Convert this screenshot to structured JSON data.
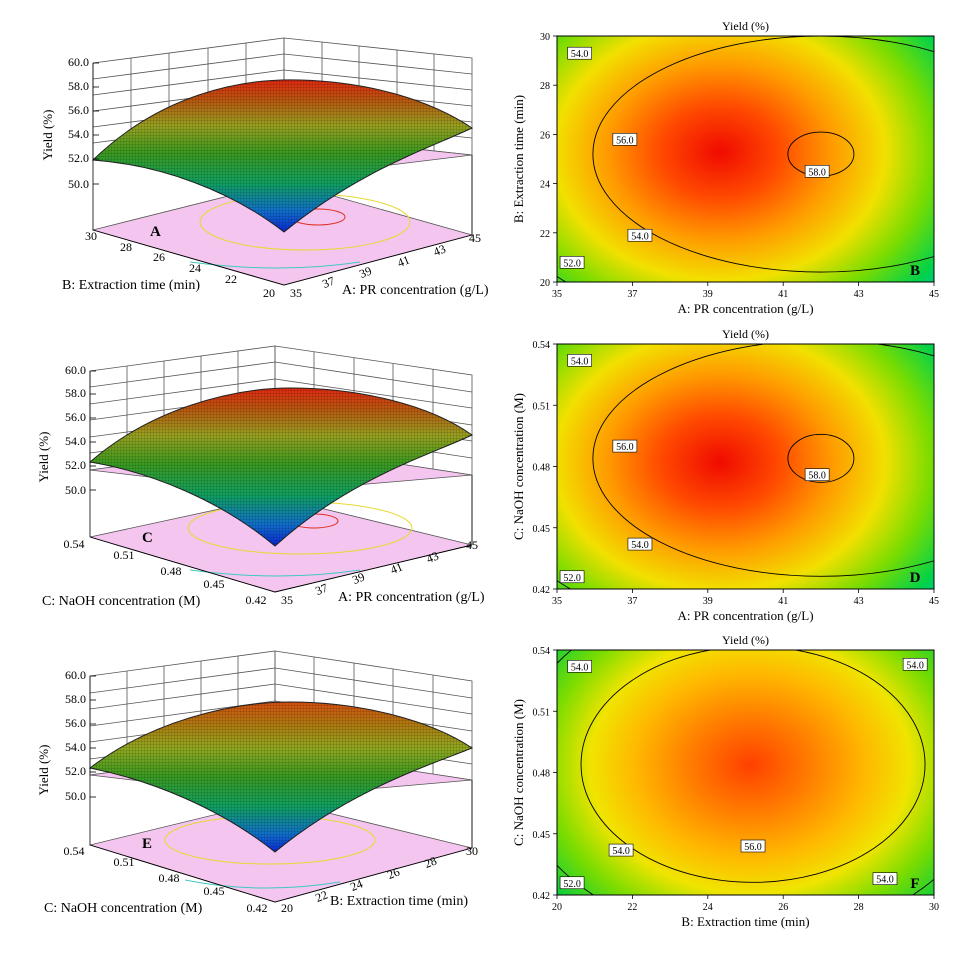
{
  "colors": {
    "floor": "#f4c6ef",
    "grid": "#555555",
    "contour_red": "#e03020",
    "contour_yellow": "#e8d830",
    "contour_cyan": "#40c8c0",
    "contour_line": "#000000"
  },
  "chart_data": [
    {
      "type": "surface3d",
      "panel": "A",
      "zlabel": "Yield (%)",
      "zticks": [
        "50.0",
        "52.0",
        "54.0",
        "56.0",
        "58.0",
        "60.0"
      ],
      "zlim": [
        50,
        60
      ],
      "xlabel": "A: PR concentration (g/L)",
      "xticks": [
        "35",
        "37",
        "39",
        "41",
        "43",
        "45"
      ],
      "xlim": [
        35,
        45
      ],
      "ylabel": "B: Extraction time (min)",
      "yticks": [
        "20",
        "22",
        "24",
        "26",
        "28",
        "30"
      ],
      "ylim": [
        20,
        30
      ],
      "optimum": {
        "x": 42,
        "y": 25.2,
        "yield": 58.4
      },
      "corners": {
        "x_min_y_min": 49.2,
        "x_min_y_max": 52.2,
        "x_max_y_min": 54.4,
        "x_max_y_max": 54.6
      }
    },
    {
      "type": "contour",
      "panel": "B",
      "title": "Yield (%)",
      "xlabel": "A: PR concentration (g/L)",
      "xticks": [
        "35",
        "37",
        "39",
        "41",
        "43",
        "45"
      ],
      "xlim": [
        35,
        45
      ],
      "ylabel": "B: Extraction time (min)",
      "yticks": [
        "20",
        "22",
        "24",
        "26",
        "28",
        "30"
      ],
      "ylim": [
        20,
        30
      ],
      "optimum": {
        "x": 42,
        "y": 25.2,
        "yield": 58.4
      },
      "levels": [
        52,
        54,
        56,
        58
      ],
      "contour_labels": [
        {
          "text": "54.0",
          "x": 35.6,
          "y": 29.3
        },
        {
          "text": "56.0",
          "x": 36.8,
          "y": 25.8
        },
        {
          "text": "58.0",
          "x": 41.9,
          "y": 24.5
        },
        {
          "text": "54.0",
          "x": 37.2,
          "y": 21.9
        },
        {
          "text": "52.0",
          "x": 35.4,
          "y": 20.8
        }
      ]
    },
    {
      "type": "surface3d",
      "panel": "C",
      "zlabel": "Yield (%)",
      "zticks": [
        "50.0",
        "52.0",
        "54.0",
        "56.0",
        "58.0",
        "60.0"
      ],
      "zlim": [
        50,
        60
      ],
      "xlabel": "A: PR concentration (g/L)",
      "xticks": [
        "35",
        "37",
        "39",
        "41",
        "43",
        "45"
      ],
      "xlim": [
        35,
        45
      ],
      "ylabel": "C: NaOH concentration (M)",
      "yticks": [
        "0.42",
        "0.45",
        "0.48",
        "0.51",
        "0.54"
      ],
      "ylim": [
        0.42,
        0.54
      ],
      "optimum": {
        "x": 42,
        "y": 0.484,
        "yield": 58.4
      },
      "corners": {
        "x_min_y_min": 49.5,
        "x_min_y_max": 52.6,
        "x_max_y_min": 55.0,
        "x_max_y_max": 54.8
      }
    },
    {
      "type": "contour",
      "panel": "D",
      "title": "Yield (%)",
      "xlabel": "A: PR concentration (g/L)",
      "xticks": [
        "35",
        "37",
        "39",
        "41",
        "43",
        "45"
      ],
      "xlim": [
        35,
        45
      ],
      "ylabel": "C: NaOH concentration (M)",
      "yticks": [
        "0.42",
        "0.45",
        "0.48",
        "0.51",
        "0.54"
      ],
      "ylim": [
        0.42,
        0.54
      ],
      "optimum": {
        "x": 42,
        "y": 0.484,
        "yield": 58.4
      },
      "levels": [
        52,
        54,
        56,
        58
      ],
      "contour_labels": [
        {
          "text": "54.0",
          "x": 35.6,
          "y": 0.532
        },
        {
          "text": "56.0",
          "x": 36.8,
          "y": 0.49
        },
        {
          "text": "58.0",
          "x": 41.9,
          "y": 0.476
        },
        {
          "text": "54.0",
          "x": 37.2,
          "y": 0.442
        },
        {
          "text": "52.0",
          "x": 35.4,
          "y": 0.426
        }
      ]
    },
    {
      "type": "surface3d",
      "panel": "E",
      "zlabel": "Yield (%)",
      "zticks": [
        "50.0",
        "52.0",
        "54.0",
        "56.0",
        "58.0",
        "60.0"
      ],
      "zlim": [
        50,
        60
      ],
      "xlabel": "B: Extraction time (min)",
      "xticks": [
        "20",
        "22",
        "24",
        "26",
        "28",
        "30"
      ],
      "xlim": [
        20,
        30
      ],
      "ylabel": "C: NaOH concentration (M)",
      "yticks": [
        "0.42",
        "0.45",
        "0.48",
        "0.51",
        "0.54"
      ],
      "ylim": [
        0.42,
        0.54
      ],
      "optimum": {
        "x": 25.2,
        "y": 0.484,
        "yield": 57.4
      },
      "corners": {
        "x_min_y_min": 50.0,
        "x_min_y_max": 52.4,
        "x_max_y_min": 53.8,
        "x_max_y_max": 53.6
      }
    },
    {
      "type": "contour",
      "panel": "F",
      "title": "Yield (%)",
      "xlabel": "B: Extraction time (min)",
      "xticks": [
        "20",
        "22",
        "24",
        "26",
        "28",
        "30"
      ],
      "xlim": [
        20,
        30
      ],
      "ylabel": "C: NaOH concentration (M)",
      "yticks": [
        "0.42",
        "0.45",
        "0.48",
        "0.51",
        "0.54"
      ],
      "ylim": [
        0.42,
        0.54
      ],
      "optimum": {
        "x": 25.2,
        "y": 0.484,
        "yield": 57.4
      },
      "levels": [
        52,
        54,
        56
      ],
      "contour_labels": [
        {
          "text": "54.0",
          "x": 20.6,
          "y": 0.532
        },
        {
          "text": "54.0",
          "x": 29.5,
          "y": 0.533
        },
        {
          "text": "54.0",
          "x": 21.7,
          "y": 0.442
        },
        {
          "text": "56.0",
          "x": 25.2,
          "y": 0.444
        },
        {
          "text": "54.0",
          "x": 28.7,
          "y": 0.428
        },
        {
          "text": "52.0",
          "x": 20.4,
          "y": 0.426
        }
      ]
    }
  ]
}
